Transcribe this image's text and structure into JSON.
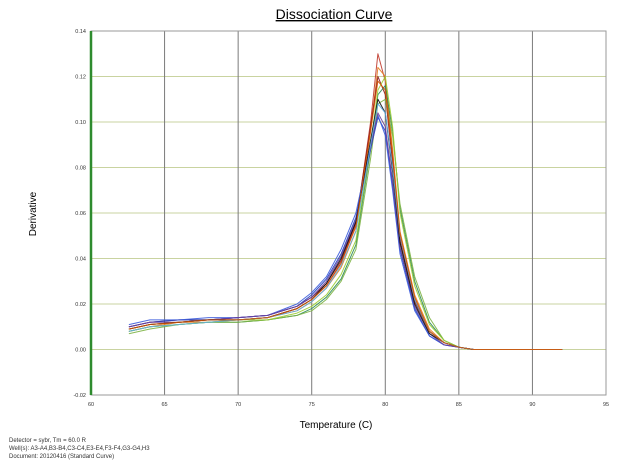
{
  "chart_data": {
    "type": "line",
    "title": "Dissociation Curve",
    "xlabel": "Temperature (C)",
    "ylabel": "Derivative",
    "xlim": [
      60,
      95
    ],
    "ylim": [
      -0.02,
      0.14
    ],
    "x_ticks": [
      "60",
      "65",
      "70",
      "75",
      "80",
      "85",
      "90",
      "95"
    ],
    "y_ticks": [
      "-0.02",
      "0.00",
      "0.02",
      "0.04",
      "0.06",
      "0.08",
      "0.10",
      "0.12",
      "0.14"
    ],
    "grid": true,
    "legend": "none",
    "x_sample": [
      62.6,
      64,
      66,
      68,
      70,
      72,
      74,
      75,
      76,
      77,
      78,
      79,
      79.5,
      80,
      80.5,
      81,
      82,
      83,
      84,
      85,
      86,
      88,
      90,
      92
    ],
    "series": [
      {
        "color": "#c0392b",
        "values": [
          0.009,
          0.011,
          0.012,
          0.013,
          0.013,
          0.014,
          0.018,
          0.022,
          0.028,
          0.038,
          0.055,
          0.1,
          0.13,
          0.118,
          0.085,
          0.05,
          0.022,
          0.008,
          0.003,
          0.001,
          0.0,
          0.0,
          0.0,
          0.0
        ]
      },
      {
        "color": "#e67e22",
        "values": [
          0.008,
          0.01,
          0.012,
          0.012,
          0.013,
          0.014,
          0.017,
          0.021,
          0.027,
          0.036,
          0.052,
          0.096,
          0.124,
          0.12,
          0.088,
          0.052,
          0.024,
          0.009,
          0.003,
          0.001,
          0.0,
          0.0,
          0.0,
          0.0
        ]
      },
      {
        "color": "#8b1a1a",
        "values": [
          0.01,
          0.012,
          0.013,
          0.013,
          0.014,
          0.015,
          0.019,
          0.023,
          0.029,
          0.039,
          0.056,
          0.098,
          0.12,
          0.112,
          0.082,
          0.048,
          0.021,
          0.008,
          0.003,
          0.001,
          0.0,
          0.0,
          0.0,
          0.0
        ]
      },
      {
        "color": "#2e8b57",
        "values": [
          0.008,
          0.01,
          0.011,
          0.012,
          0.012,
          0.013,
          0.015,
          0.018,
          0.023,
          0.031,
          0.046,
          0.088,
          0.112,
          0.116,
          0.096,
          0.062,
          0.03,
          0.012,
          0.004,
          0.001,
          0.0,
          0.0,
          0.0,
          0.0
        ]
      },
      {
        "color": "#7cb342",
        "values": [
          0.007,
          0.009,
          0.011,
          0.012,
          0.012,
          0.013,
          0.015,
          0.017,
          0.022,
          0.03,
          0.044,
          0.084,
          0.108,
          0.11,
          0.094,
          0.064,
          0.032,
          0.014,
          0.004,
          0.001,
          0.0,
          0.0,
          0.0,
          0.0
        ]
      },
      {
        "color": "#9acd32",
        "values": [
          0.008,
          0.01,
          0.011,
          0.012,
          0.013,
          0.013,
          0.016,
          0.019,
          0.024,
          0.033,
          0.048,
          0.09,
          0.114,
          0.12,
          0.098,
          0.06,
          0.028,
          0.011,
          0.004,
          0.001,
          0.0,
          0.0,
          0.0,
          0.0
        ]
      },
      {
        "color": "#1f3fbf",
        "values": [
          0.01,
          0.012,
          0.013,
          0.013,
          0.014,
          0.015,
          0.019,
          0.024,
          0.031,
          0.042,
          0.058,
          0.088,
          0.102,
          0.096,
          0.072,
          0.044,
          0.018,
          0.006,
          0.002,
          0.001,
          0.0,
          0.0,
          0.0,
          0.0
        ]
      },
      {
        "color": "#3b5bdb",
        "values": [
          0.011,
          0.013,
          0.013,
          0.014,
          0.014,
          0.015,
          0.02,
          0.025,
          0.032,
          0.044,
          0.06,
          0.09,
          0.103,
          0.094,
          0.07,
          0.042,
          0.017,
          0.006,
          0.002,
          0.001,
          0.0,
          0.0,
          0.0,
          0.0
        ]
      },
      {
        "color": "#6a3d9a",
        "values": [
          0.01,
          0.012,
          0.012,
          0.013,
          0.014,
          0.015,
          0.019,
          0.023,
          0.03,
          0.041,
          0.057,
          0.089,
          0.104,
          0.098,
          0.074,
          0.045,
          0.019,
          0.007,
          0.002,
          0.001,
          0.0,
          0.0,
          0.0,
          0.0
        ]
      },
      {
        "color": "#111111",
        "values": [
          0.009,
          0.011,
          0.012,
          0.013,
          0.013,
          0.014,
          0.018,
          0.022,
          0.029,
          0.04,
          0.056,
          0.092,
          0.11,
          0.104,
          0.078,
          0.047,
          0.02,
          0.007,
          0.003,
          0.001,
          0.0,
          0.0,
          0.0,
          0.0
        ]
      },
      {
        "color": "#5dade2",
        "values": [
          0.008,
          0.01,
          0.011,
          0.012,
          0.013,
          0.014,
          0.017,
          0.021,
          0.027,
          0.037,
          0.052,
          0.09,
          0.108,
          0.104,
          0.08,
          0.05,
          0.022,
          0.008,
          0.003,
          0.001,
          0.0,
          0.0,
          0.0,
          0.0
        ]
      },
      {
        "color": "#d35400",
        "values": [
          0.009,
          0.011,
          0.012,
          0.013,
          0.013,
          0.014,
          0.018,
          0.022,
          0.028,
          0.038,
          0.054,
          0.096,
          0.118,
          0.114,
          0.086,
          0.051,
          0.023,
          0.008,
          0.003,
          0.001,
          0.0,
          0.0,
          0.0,
          0.0
        ]
      }
    ]
  },
  "footer": {
    "line1": "Detector = sybr, Tm = 60.0 R",
    "line2": "Well(s): A3-A4,B3-B4,C3-C4,E3-E4,F3-F4,G3-G4,H3",
    "line3": "Document: 20120416 (Standard Curve)"
  },
  "colors": {
    "grid_vertical": "#7a7a7a",
    "grid_horizontal": "#c9d3a0",
    "y_axis": "#2e8b2e",
    "title_underline": "#000000"
  }
}
